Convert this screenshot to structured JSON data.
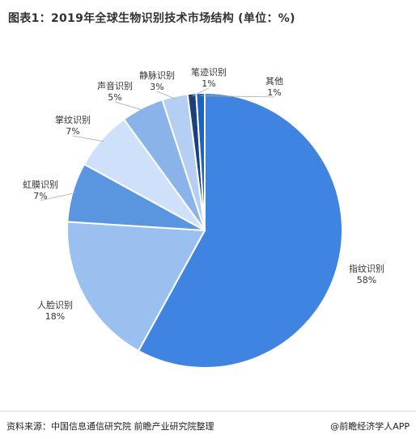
{
  "chart_data": {
    "type": "pie",
    "title": "图表1：2019年全球生物识别技术市场结构 (单位：%)",
    "unit": "%",
    "slices": [
      {
        "label": "指纹识别",
        "value": 58,
        "display": "58%",
        "color": "#3f84e0"
      },
      {
        "label": "人脸识别",
        "value": 18,
        "display": "18%",
        "color": "#9ac0ef"
      },
      {
        "label": "虹膜识别",
        "value": 7,
        "display": "7%",
        "color": "#5a96e0"
      },
      {
        "label": "掌纹识别",
        "value": 7,
        "display": "7%",
        "color": "#cfe1fa"
      },
      {
        "label": "声音识别",
        "value": 5,
        "display": "5%",
        "color": "#8ab3ea"
      },
      {
        "label": "静脉识别",
        "value": 3,
        "display": "3%",
        "color": "#b4cff3"
      },
      {
        "label": "笔迹识别",
        "value": 1,
        "display": "1%",
        "color": "#1d3f7a"
      },
      {
        "label": "其他",
        "value": 1,
        "display": "1%",
        "color": "#1c64c4"
      }
    ]
  },
  "footer": {
    "source": "资料来源：中国信息通信研究院 前瞻产业研究院整理",
    "brand": "@前瞻经济学人APP"
  }
}
